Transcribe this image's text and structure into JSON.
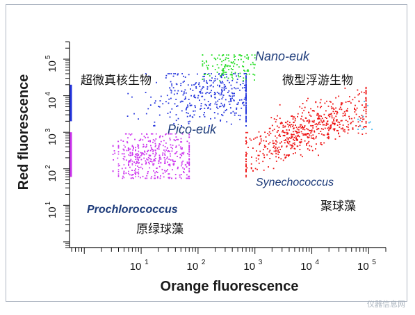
{
  "chart_data": {
    "type": "scatter",
    "title": "",
    "xlabel": "Orange fluorescence",
    "ylabel": "Red fluorescence",
    "x_scale": "log",
    "y_scale": "log",
    "xlim": [
      0.55,
      200000
    ],
    "ylim": [
      0.7,
      300000
    ],
    "x_ticks": [
      {
        "base": "10",
        "exp": "1",
        "value": 10
      },
      {
        "base": "10",
        "exp": "2",
        "value": 100
      },
      {
        "base": "10",
        "exp": "3",
        "value": 1000
      },
      {
        "base": "10",
        "exp": "4",
        "value": 10000
      },
      {
        "base": "10",
        "exp": "5",
        "value": 100000
      }
    ],
    "y_ticks": [
      {
        "base": "10",
        "exp": "1",
        "value": 10
      },
      {
        "base": "10",
        "exp": "2",
        "value": 100
      },
      {
        "base": "10",
        "exp": "3",
        "value": 1000
      },
      {
        "base": "10",
        "exp": "4",
        "value": 10000
      },
      {
        "base": "10",
        "exp": "5",
        "value": 100000
      }
    ],
    "grid": false,
    "legend": "none",
    "populations": [
      {
        "key": "prochlorococcus",
        "color": "#cc33ee",
        "x_range": [
          3.2,
          70
        ],
        "y_range": [
          55,
          900
        ],
        "center": [
          20,
          200
        ],
        "count": 380
      },
      {
        "key": "pico_euk",
        "color": "#2233dd",
        "x_range": [
          5,
          700
        ],
        "y_range": [
          1500,
          40000
        ],
        "center": [
          220,
          10000
        ],
        "count": 420
      },
      {
        "key": "nano_euk",
        "color": "#22dd22",
        "x_range": [
          120,
          1000
        ],
        "y_range": [
          25000,
          130000
        ],
        "center": [
          400,
          70000
        ],
        "count": 130
      },
      {
        "key": "synechococcus",
        "color": "#ee1111",
        "x_range": [
          700,
          90000
        ],
        "y_range": [
          60,
          30000
        ],
        "center": [
          8000,
          1200
        ],
        "count": 620
      },
      {
        "key": "outlier",
        "color": "#33b5f0",
        "x_range": [
          65000,
          130000
        ],
        "y_range": [
          1200,
          8000
        ],
        "center": [
          85000,
          2000
        ],
        "count": 12
      }
    ],
    "edge_bar": {
      "color": "#cc33ee",
      "y_range": [
        60,
        1000
      ]
    },
    "edge_bar_blue": {
      "color": "#2233dd",
      "y_range": [
        2000,
        20000
      ]
    }
  },
  "labels": {
    "nano_en": "Nano-euk",
    "nano_cn": "微型浮游生物",
    "pico_en": "Pico-euk",
    "pico_cn": "超微真核生物",
    "syn_en": "Synechococcus",
    "syn_cn": "聚球藻",
    "pro_en": "Prochlorococcus",
    "pro_cn": "原绿球藻"
  },
  "watermark": "仪器信息网"
}
